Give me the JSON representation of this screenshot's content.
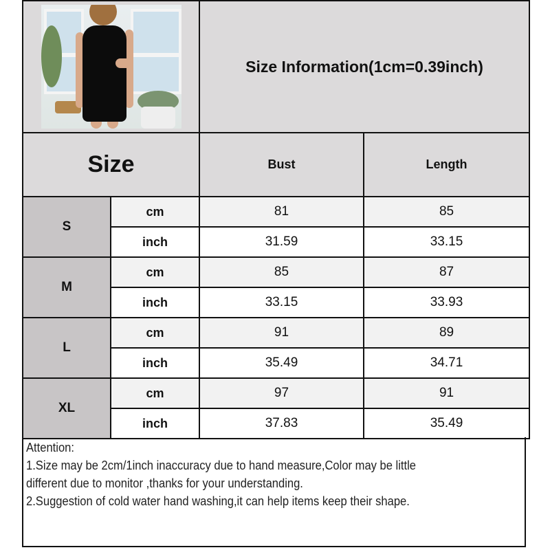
{
  "header": {
    "title": "Size Information(1cm=0.39inch)"
  },
  "table": {
    "size_label": "Size",
    "columns": [
      "Bust",
      "Length"
    ],
    "rows": [
      {
        "size": "S",
        "cm_label": "cm",
        "inch_label": "inch",
        "cm": [
          "81",
          "85"
        ],
        "inch": [
          "31.59",
          "33.15"
        ]
      },
      {
        "size": "M",
        "cm_label": "cm",
        "inch_label": "inch",
        "cm": [
          "85",
          "87"
        ],
        "inch": [
          "33.15",
          "33.93"
        ]
      },
      {
        "size": "L",
        "cm_label": "cm",
        "inch_label": "inch",
        "cm": [
          "91",
          "89"
        ],
        "inch": [
          "35.49",
          "34.71"
        ]
      },
      {
        "size": "XL",
        "cm_label": "cm",
        "inch_label": "inch",
        "cm": [
          "97",
          "91"
        ],
        "inch": [
          "37.83",
          "35.49"
        ]
      }
    ]
  },
  "notes": {
    "heading": "Attention:",
    "line1a": "1.Size may be 2cm/1inch inaccuracy due to hand measure,Color may be little",
    "line1b": "different due to monitor ,thanks for your understanding.",
    "line2": "2.Suggestion of cold water hand washing,it can help items keep their shape."
  },
  "colors": {
    "header_bg": "#dcdadb",
    "size_cell_bg": "#c8c5c6",
    "cm_row_bg": "#f2f2f2"
  }
}
